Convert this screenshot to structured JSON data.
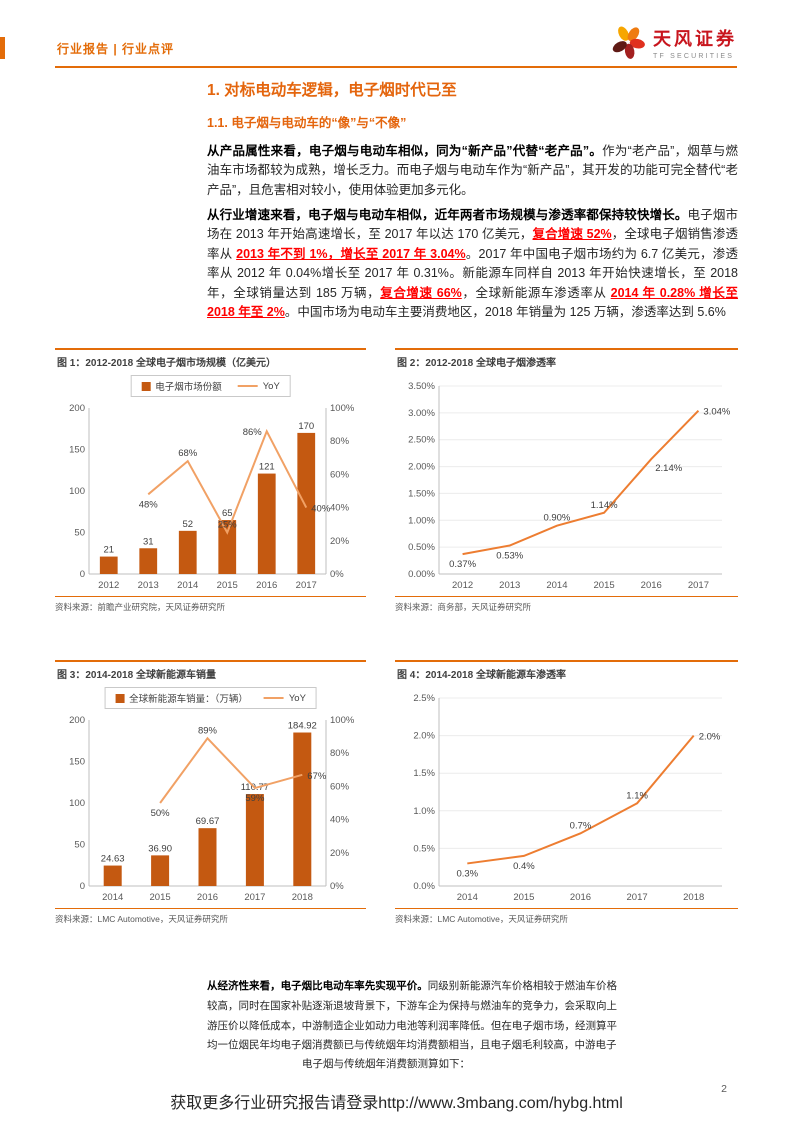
{
  "header": {
    "report_type": "行业报告 | 行业点评",
    "brand_name": "天风证券",
    "brand_sub": "TF SECURITIES"
  },
  "titles": {
    "section": "1. 对标电动车逻辑，电子烟时代已至",
    "subsection": "1.1. 电子烟与电动车的“像”与“不像”"
  },
  "paragraphs": {
    "product": [
      {
        "t": "从产品属性来看，电子烟与电动车相似，同为“新产品”代替“老产品”。",
        "s": "b"
      },
      {
        "t": "作为“老产品”，烟草与燃油车市场都较为成熟，增长乏力。而电子烟与电动车作为“新产品”，其开发的功能可完全替代“老产品”，且危害相对较小，使用体验更加多元化。"
      }
    ],
    "growth": [
      {
        "t": "从行业增速来看，电子烟与电动车相似，近年两者市场规模与渗透率都保持较快增长。",
        "s": "b"
      },
      {
        "t": "电子烟市场在 2013 年开始高速增长，至 2017 年以达 170 亿美元，"
      },
      {
        "t": "复合增速 52%",
        "s": "r"
      },
      {
        "t": "，全球电子烟销售渗透率从 "
      },
      {
        "t": "2013 年不到 1%，增长至 2017 年 3.04%",
        "s": "r"
      },
      {
        "t": "。2017 年中国电子烟市场约为 6.7 亿美元，渗透率从 2012 年 0.04%增长至 2017 年 0.31%。新能源车同样自 2013 年开始快速增长，至 2018 年，全球销量达到 185 万辆，"
      },
      {
        "t": "复合增速 66%",
        "s": "r"
      },
      {
        "t": "，全球新能源车渗透率从 "
      },
      {
        "t": "2014 年 0.28% 增长至 2018 年至 2%",
        "s": "r"
      },
      {
        "t": "。中国市场为电动车主要消费地区，2018 年销量为 125 万辆，渗透率达到 5.6%"
      }
    ],
    "economics": [
      {
        "t": "从经济性来看，电子烟比电动车率先实现平价。",
        "s": "b"
      },
      {
        "t": "同级别新能源汽车价格相较于燃油车价格较高，同时在国家补贴逐渐退坡背景下，下游车企为保持与燃油车的竞争力，会采取向上游压价以降低成本，中游制造企业如动力电池等利润率降低。但在电子烟市场，经测算平均一位烟民年均电子烟消费额已与传统烟年均消费额相当，且电子烟毛利较高，中游电子"
      }
    ],
    "economics_cont": "电子烟与传统烟年消费额测算如下："
  },
  "colors": {
    "accent": "#E36C09",
    "bar": "#C45911",
    "yoy_line": "#F1A165",
    "trend_line": "#ED7D31",
    "highlight_red": "#FF0000"
  },
  "chart_data": [
    {
      "figure_label": "图 1：2012-2018 全球电子烟市场规模（亿美元）",
      "source": "资料来源：前瞻产业研究院，天风证券研究所",
      "type": "bar+line",
      "legend": true,
      "grid": false,
      "categories": [
        "2012",
        "2013",
        "2014",
        "2015",
        "2016",
        "2017"
      ],
      "bar_series": {
        "name": "电子烟市场份额",
        "values": [
          21,
          31,
          52,
          65,
          121,
          170
        ],
        "labels": [
          "21",
          "31",
          "52",
          "65",
          "121",
          "170"
        ],
        "color": "#C45911"
      },
      "line_series": {
        "name": "YoY",
        "axis": "right",
        "values": [
          null,
          48,
          68,
          25,
          86,
          40
        ],
        "labels": [
          "",
          "48%",
          "68%",
          "25%",
          "86%",
          "40%"
        ],
        "label_pos": [
          "",
          "below",
          "above",
          "above",
          "left",
          "right"
        ],
        "color": "#F1A165"
      },
      "left_axis": {
        "min": 0,
        "max": 200,
        "ticks": [
          "0",
          "50",
          "100",
          "150",
          "200"
        ]
      },
      "right_axis": {
        "min": 0,
        "max": 100,
        "ticks": [
          "0%",
          "20%",
          "40%",
          "60%",
          "80%",
          "100%"
        ]
      }
    },
    {
      "figure_label": "图 2：2012-2018 全球电子烟渗透率",
      "source": "资料来源：商务部，天风证券研究所",
      "type": "line",
      "legend": false,
      "grid": true,
      "categories": [
        "2012",
        "2013",
        "2014",
        "2015",
        "2016",
        "2017"
      ],
      "line_series": {
        "name": "全球电子烟渗透率",
        "axis": "left",
        "values": [
          0.37,
          0.53,
          0.9,
          1.14,
          2.14,
          3.04
        ],
        "labels": [
          "0.37%",
          "0.53%",
          "0.90%",
          "1.14%",
          "2.14%",
          "3.04%"
        ],
        "label_pos": [
          "below",
          "below",
          "above",
          "above",
          "below-right",
          "right"
        ],
        "color": "#ED7D31"
      },
      "left_axis": {
        "min": 0,
        "max": 3.5,
        "ticks": [
          "0.00%",
          "0.50%",
          "1.00%",
          "1.50%",
          "2.00%",
          "2.50%",
          "3.00%",
          "3.50%"
        ]
      }
    },
    {
      "figure_label": "图 3：2014-2018 全球新能源车销量",
      "source": "资料来源：LMC Automotive，天风证券研究所",
      "type": "bar+line",
      "legend": true,
      "grid": false,
      "categories": [
        "2014",
        "2015",
        "2016",
        "2017",
        "2018"
      ],
      "bar_series": {
        "name": "全球新能源车销量：（万辆）",
        "values": [
          24.63,
          36.9,
          69.67,
          110.77,
          184.92
        ],
        "labels": [
          "24.63",
          "36.90",
          "69.67",
          "110.77",
          "184.92"
        ],
        "color": "#C45911"
      },
      "line_series": {
        "name": "YoY",
        "axis": "right",
        "values": [
          null,
          50,
          89,
          59,
          67
        ],
        "labels": [
          "",
          "50%",
          "89%",
          "59%",
          "67%"
        ],
        "label_pos": [
          "",
          "below",
          "above",
          "below",
          "right"
        ],
        "color": "#F1A165"
      },
      "left_axis": {
        "min": 0,
        "max": 200,
        "ticks": [
          "0",
          "50",
          "100",
          "150",
          "200"
        ]
      },
      "right_axis": {
        "min": 0,
        "max": 100,
        "ticks": [
          "0%",
          "20%",
          "40%",
          "60%",
          "80%",
          "100%"
        ]
      }
    },
    {
      "figure_label": "图 4：2014-2018 全球新能源车渗透率",
      "source": "资料来源：LMC Automotive，天风证券研究所",
      "type": "line",
      "legend": false,
      "grid": true,
      "categories": [
        "2014",
        "2015",
        "2016",
        "2017",
        "2018"
      ],
      "line_series": {
        "name": "全球新能源车渗透率",
        "axis": "left",
        "values": [
          0.3,
          0.4,
          0.7,
          1.1,
          2.0
        ],
        "labels": [
          "0.3%",
          "0.4%",
          "0.7%",
          "1.1%",
          "2.0%"
        ],
        "label_pos": [
          "below",
          "below",
          "above",
          "above",
          "right"
        ],
        "color": "#ED7D31"
      },
      "left_axis": {
        "min": 0,
        "max": 2.5,
        "ticks": [
          "0.0%",
          "0.5%",
          "1.0%",
          "1.5%",
          "2.0%",
          "2.5%"
        ]
      }
    }
  ],
  "footer": {
    "link": "获取更多行业研究报告请登录http://www.3mbang.com/hybg.html",
    "page_number": "2"
  }
}
